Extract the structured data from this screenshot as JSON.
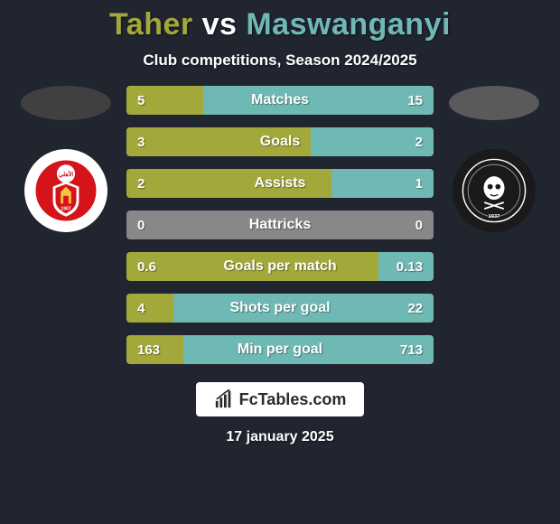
{
  "background_color": "#212530",
  "title": {
    "player1": "Taher",
    "vs": "vs",
    "player2": "Maswanganyi",
    "player1_color": "#a3a83a",
    "vs_color": "#ffffff",
    "player2_color": "#6fb9b5"
  },
  "subtitle": "Club competitions, Season 2024/2025",
  "side_left": {
    "oval_color": "#404040",
    "circle_bg": "#ffffff"
  },
  "side_right": {
    "oval_color": "#5a5a5a",
    "circle_bg": "#1a1a1a"
  },
  "stats": {
    "row_bg": "#888888",
    "left_fill_color": "#a3a83a",
    "right_fill_color": "#6fb9b5",
    "rows": [
      {
        "left_val": "5",
        "label": "Matches",
        "right_val": "15",
        "left_pct": 25.0,
        "right_pct": 75.0
      },
      {
        "left_val": "3",
        "label": "Goals",
        "right_val": "2",
        "left_pct": 60.0,
        "right_pct": 40.0
      },
      {
        "left_val": "2",
        "label": "Assists",
        "right_val": "1",
        "left_pct": 66.67,
        "right_pct": 33.33
      },
      {
        "left_val": "0",
        "label": "Hattricks",
        "right_val": "0",
        "left_pct": 0.0,
        "right_pct": 0.0
      },
      {
        "left_val": "0.6",
        "label": "Goals per match",
        "right_val": "0.13",
        "left_pct": 82.19,
        "right_pct": 17.81
      },
      {
        "left_val": "4",
        "label": "Shots per goal",
        "right_val": "22",
        "left_pct": 15.38,
        "right_pct": 84.62
      },
      {
        "left_val": "163",
        "label": "Min per goal",
        "right_val": "713",
        "left_pct": 18.61,
        "right_pct": 81.39
      }
    ]
  },
  "footer": {
    "logo_text": "FcTables.com",
    "date": "17 january 2025"
  }
}
